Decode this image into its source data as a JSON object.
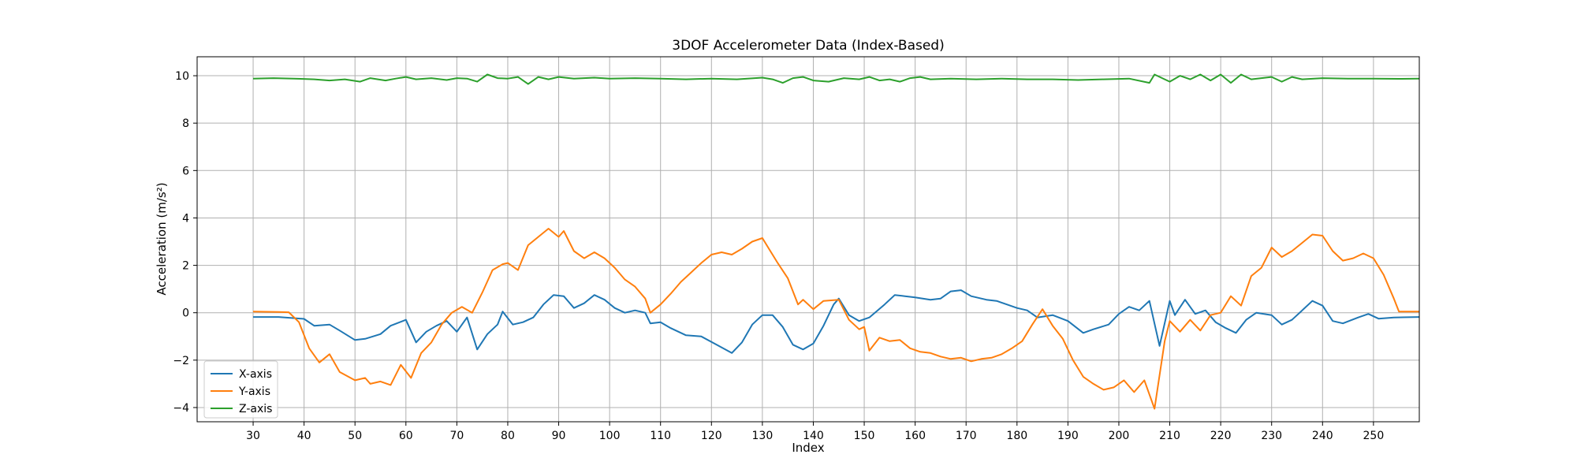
{
  "chart_data": {
    "type": "line",
    "title": "3DOF Accelerometer Data (Index-Based)",
    "xlabel": "Index",
    "ylabel": "Acceleration (m/s²)",
    "xlim": [
      19,
      259
    ],
    "ylim": [
      -4.6,
      10.8
    ],
    "xticks": [
      30,
      40,
      50,
      60,
      70,
      80,
      90,
      100,
      110,
      120,
      130,
      140,
      150,
      160,
      170,
      180,
      190,
      200,
      210,
      220,
      230,
      240,
      250
    ],
    "yticks": [
      -4,
      -2,
      0,
      2,
      4,
      6,
      8,
      10
    ],
    "grid": true,
    "legend_position": "lower-left",
    "series": [
      {
        "name": "X-axis",
        "color": "#1f77b4",
        "points": [
          [
            30,
            -0.18
          ],
          [
            35,
            -0.18
          ],
          [
            40,
            -0.26
          ],
          [
            42,
            -0.55
          ],
          [
            45,
            -0.5
          ],
          [
            47,
            -0.75
          ],
          [
            50,
            -1.15
          ],
          [
            52,
            -1.1
          ],
          [
            55,
            -0.9
          ],
          [
            57,
            -0.55
          ],
          [
            60,
            -0.3
          ],
          [
            62,
            -1.25
          ],
          [
            64,
            -0.8
          ],
          [
            66,
            -0.55
          ],
          [
            68,
            -0.35
          ],
          [
            70,
            -0.8
          ],
          [
            72,
            -0.2
          ],
          [
            74,
            -1.55
          ],
          [
            76,
            -0.9
          ],
          [
            78,
            -0.5
          ],
          [
            79,
            0.05
          ],
          [
            81,
            -0.5
          ],
          [
            83,
            -0.4
          ],
          [
            85,
            -0.2
          ],
          [
            87,
            0.35
          ],
          [
            89,
            0.75
          ],
          [
            91,
            0.7
          ],
          [
            93,
            0.2
          ],
          [
            95,
            0.4
          ],
          [
            97,
            0.75
          ],
          [
            99,
            0.55
          ],
          [
            101,
            0.2
          ],
          [
            103,
            0.0
          ],
          [
            105,
            0.1
          ],
          [
            107,
            0.0
          ],
          [
            108,
            -0.45
          ],
          [
            110,
            -0.4
          ],
          [
            112,
            -0.65
          ],
          [
            115,
            -0.95
          ],
          [
            118,
            -1.0
          ],
          [
            121,
            -1.35
          ],
          [
            124,
            -1.7
          ],
          [
            126,
            -1.25
          ],
          [
            128,
            -0.5
          ],
          [
            130,
            -0.1
          ],
          [
            132,
            -0.1
          ],
          [
            134,
            -0.6
          ],
          [
            136,
            -1.35
          ],
          [
            138,
            -1.55
          ],
          [
            140,
            -1.3
          ],
          [
            142,
            -0.55
          ],
          [
            144,
            0.35
          ],
          [
            145,
            0.6
          ],
          [
            147,
            -0.1
          ],
          [
            149,
            -0.35
          ],
          [
            151,
            -0.2
          ],
          [
            154,
            0.35
          ],
          [
            156,
            0.75
          ],
          [
            158,
            0.7
          ],
          [
            160,
            0.65
          ],
          [
            163,
            0.55
          ],
          [
            165,
            0.6
          ],
          [
            167,
            0.9
          ],
          [
            169,
            0.95
          ],
          [
            171,
            0.7
          ],
          [
            174,
            0.55
          ],
          [
            176,
            0.5
          ],
          [
            178,
            0.35
          ],
          [
            180,
            0.2
          ],
          [
            182,
            0.1
          ],
          [
            184,
            -0.2
          ],
          [
            187,
            -0.1
          ],
          [
            190,
            -0.35
          ],
          [
            193,
            -0.85
          ],
          [
            195,
            -0.7
          ],
          [
            198,
            -0.5
          ],
          [
            200,
            -0.05
          ],
          [
            202,
            0.25
          ],
          [
            204,
            0.1
          ],
          [
            206,
            0.5
          ],
          [
            208,
            -1.4
          ],
          [
            210,
            0.5
          ],
          [
            211,
            -0.1
          ],
          [
            213,
            0.55
          ],
          [
            215,
            -0.05
          ],
          [
            217,
            0.1
          ],
          [
            219,
            -0.4
          ],
          [
            221,
            -0.65
          ],
          [
            223,
            -0.85
          ],
          [
            225,
            -0.3
          ],
          [
            227,
            0.0
          ],
          [
            230,
            -0.1
          ],
          [
            232,
            -0.5
          ],
          [
            234,
            -0.3
          ],
          [
            236,
            0.1
          ],
          [
            238,
            0.5
          ],
          [
            240,
            0.3
          ],
          [
            242,
            -0.35
          ],
          [
            244,
            -0.45
          ],
          [
            247,
            -0.2
          ],
          [
            249,
            -0.05
          ],
          [
            251,
            -0.25
          ],
          [
            254,
            -0.2
          ],
          [
            259,
            -0.18
          ]
        ]
      },
      {
        "name": "Y-axis",
        "color": "#ff7f0e",
        "points": [
          [
            30,
            0.05
          ],
          [
            35,
            0.03
          ],
          [
            37,
            0.02
          ],
          [
            39,
            -0.4
          ],
          [
            41,
            -1.5
          ],
          [
            43,
            -2.1
          ],
          [
            45,
            -1.75
          ],
          [
            47,
            -2.5
          ],
          [
            50,
            -2.85
          ],
          [
            52,
            -2.75
          ],
          [
            53,
            -3.0
          ],
          [
            55,
            -2.9
          ],
          [
            57,
            -3.05
          ],
          [
            59,
            -2.2
          ],
          [
            61,
            -2.75
          ],
          [
            63,
            -1.7
          ],
          [
            65,
            -1.25
          ],
          [
            67,
            -0.5
          ],
          [
            69,
            0.0
          ],
          [
            71,
            0.25
          ],
          [
            73,
            0.0
          ],
          [
            75,
            0.85
          ],
          [
            77,
            1.8
          ],
          [
            79,
            2.05
          ],
          [
            80,
            2.1
          ],
          [
            82,
            1.8
          ],
          [
            84,
            2.85
          ],
          [
            86,
            3.2
          ],
          [
            88,
            3.55
          ],
          [
            90,
            3.2
          ],
          [
            91,
            3.45
          ],
          [
            93,
            2.6
          ],
          [
            95,
            2.3
          ],
          [
            97,
            2.55
          ],
          [
            99,
            2.3
          ],
          [
            101,
            1.9
          ],
          [
            103,
            1.4
          ],
          [
            105,
            1.1
          ],
          [
            107,
            0.6
          ],
          [
            108,
            0.0
          ],
          [
            110,
            0.35
          ],
          [
            112,
            0.8
          ],
          [
            114,
            1.3
          ],
          [
            116,
            1.7
          ],
          [
            118,
            2.1
          ],
          [
            120,
            2.45
          ],
          [
            122,
            2.55
          ],
          [
            124,
            2.45
          ],
          [
            126,
            2.7
          ],
          [
            128,
            3.0
          ],
          [
            130,
            3.15
          ],
          [
            131,
            2.8
          ],
          [
            133,
            2.1
          ],
          [
            135,
            1.45
          ],
          [
            137,
            0.35
          ],
          [
            138,
            0.55
          ],
          [
            140,
            0.15
          ],
          [
            142,
            0.5
          ],
          [
            145,
            0.55
          ],
          [
            147,
            -0.3
          ],
          [
            149,
            -0.7
          ],
          [
            150,
            -0.6
          ],
          [
            151,
            -1.6
          ],
          [
            153,
            -1.05
          ],
          [
            155,
            -1.2
          ],
          [
            157,
            -1.15
          ],
          [
            159,
            -1.5
          ],
          [
            161,
            -1.65
          ],
          [
            163,
            -1.7
          ],
          [
            165,
            -1.85
          ],
          [
            167,
            -1.95
          ],
          [
            169,
            -1.9
          ],
          [
            171,
            -2.05
          ],
          [
            173,
            -1.95
          ],
          [
            175,
            -1.9
          ],
          [
            177,
            -1.75
          ],
          [
            179,
            -1.5
          ],
          [
            181,
            -1.2
          ],
          [
            183,
            -0.5
          ],
          [
            185,
            0.15
          ],
          [
            187,
            -0.55
          ],
          [
            189,
            -1.1
          ],
          [
            191,
            -2.0
          ],
          [
            193,
            -2.7
          ],
          [
            195,
            -3.0
          ],
          [
            197,
            -3.25
          ],
          [
            199,
            -3.15
          ],
          [
            201,
            -2.85
          ],
          [
            203,
            -3.35
          ],
          [
            205,
            -2.85
          ],
          [
            207,
            -4.05
          ],
          [
            209,
            -1.2
          ],
          [
            210,
            -0.35
          ],
          [
            212,
            -0.8
          ],
          [
            214,
            -0.3
          ],
          [
            216,
            -0.75
          ],
          [
            218,
            -0.1
          ],
          [
            220,
            0.0
          ],
          [
            222,
            0.7
          ],
          [
            224,
            0.3
          ],
          [
            226,
            1.55
          ],
          [
            228,
            1.9
          ],
          [
            230,
            2.75
          ],
          [
            232,
            2.35
          ],
          [
            234,
            2.6
          ],
          [
            236,
            2.95
          ],
          [
            238,
            3.3
          ],
          [
            240,
            3.25
          ],
          [
            242,
            2.6
          ],
          [
            244,
            2.2
          ],
          [
            246,
            2.3
          ],
          [
            248,
            2.5
          ],
          [
            250,
            2.3
          ],
          [
            252,
            1.6
          ],
          [
            254,
            0.6
          ],
          [
            255,
            0.05
          ],
          [
            259,
            0.05
          ]
        ]
      },
      {
        "name": "Z-axis",
        "color": "#2ca02c",
        "points": [
          [
            30,
            9.88
          ],
          [
            34,
            9.9
          ],
          [
            38,
            9.88
          ],
          [
            42,
            9.85
          ],
          [
            45,
            9.8
          ],
          [
            48,
            9.85
          ],
          [
            51,
            9.75
          ],
          [
            53,
            9.9
          ],
          [
            56,
            9.8
          ],
          [
            58,
            9.88
          ],
          [
            60,
            9.95
          ],
          [
            62,
            9.85
          ],
          [
            65,
            9.9
          ],
          [
            68,
            9.82
          ],
          [
            70,
            9.9
          ],
          [
            72,
            9.88
          ],
          [
            74,
            9.75
          ],
          [
            76,
            10.05
          ],
          [
            78,
            9.9
          ],
          [
            80,
            9.88
          ],
          [
            82,
            9.95
          ],
          [
            84,
            9.65
          ],
          [
            86,
            9.95
          ],
          [
            88,
            9.85
          ],
          [
            90,
            9.95
          ],
          [
            93,
            9.88
          ],
          [
            97,
            9.92
          ],
          [
            100,
            9.88
          ],
          [
            105,
            9.9
          ],
          [
            110,
            9.88
          ],
          [
            115,
            9.85
          ],
          [
            120,
            9.88
          ],
          [
            125,
            9.85
          ],
          [
            130,
            9.92
          ],
          [
            132,
            9.85
          ],
          [
            134,
            9.7
          ],
          [
            136,
            9.9
          ],
          [
            138,
            9.95
          ],
          [
            140,
            9.8
          ],
          [
            143,
            9.75
          ],
          [
            146,
            9.9
          ],
          [
            149,
            9.85
          ],
          [
            151,
            9.95
          ],
          [
            153,
            9.8
          ],
          [
            155,
            9.85
          ],
          [
            157,
            9.75
          ],
          [
            159,
            9.9
          ],
          [
            161,
            9.95
          ],
          [
            163,
            9.85
          ],
          [
            167,
            9.88
          ],
          [
            172,
            9.85
          ],
          [
            177,
            9.88
          ],
          [
            182,
            9.85
          ],
          [
            187,
            9.85
          ],
          [
            192,
            9.82
          ],
          [
            197,
            9.85
          ],
          [
            202,
            9.88
          ],
          [
            206,
            9.7
          ],
          [
            207,
            10.05
          ],
          [
            209,
            9.85
          ],
          [
            210,
            9.75
          ],
          [
            212,
            10.0
          ],
          [
            214,
            9.85
          ],
          [
            216,
            10.05
          ],
          [
            218,
            9.8
          ],
          [
            220,
            10.05
          ],
          [
            222,
            9.7
          ],
          [
            224,
            10.05
          ],
          [
            226,
            9.85
          ],
          [
            228,
            9.9
          ],
          [
            230,
            9.95
          ],
          [
            232,
            9.75
          ],
          [
            234,
            9.95
          ],
          [
            236,
            9.85
          ],
          [
            240,
            9.9
          ],
          [
            245,
            9.88
          ],
          [
            250,
            9.88
          ],
          [
            255,
            9.87
          ],
          [
            259,
            9.88
          ]
        ]
      }
    ]
  }
}
